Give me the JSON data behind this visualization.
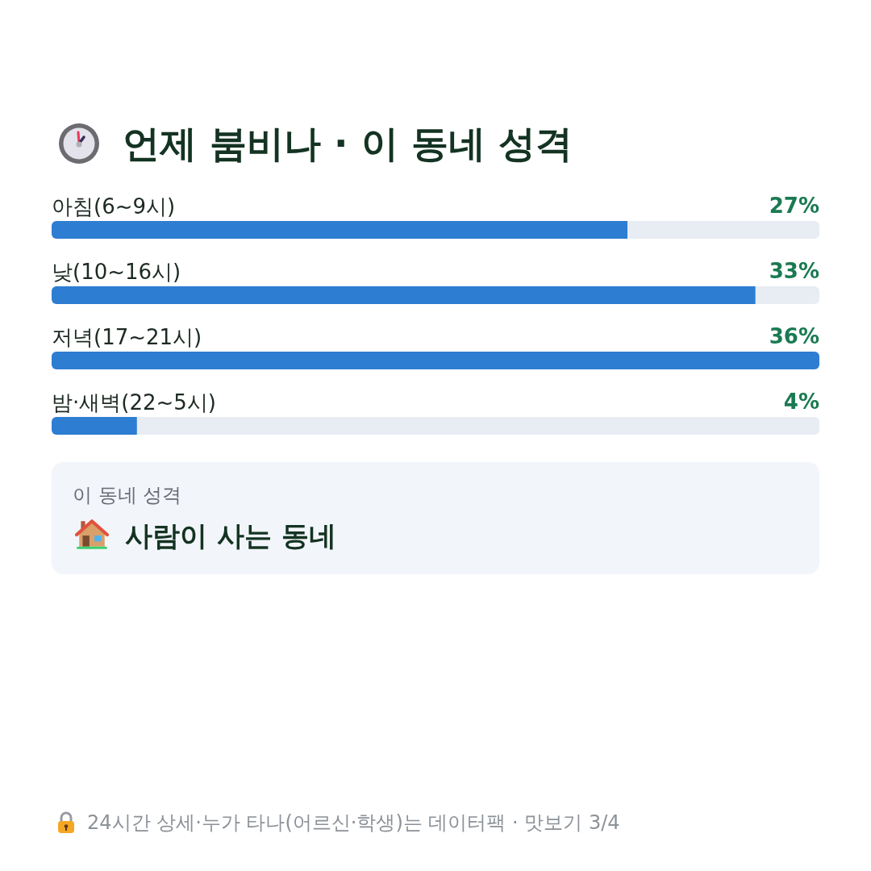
{
  "chart_data": {
    "type": "bar",
    "orientation": "horizontal",
    "title": "언제 붐비나 · 이 동네 성격",
    "categories": [
      "아침(6~9시)",
      "낮(10~16시)",
      "저녁(17~21시)",
      "밤·새벽(22~5시)"
    ],
    "values": [
      27,
      33,
      36,
      4
    ],
    "value_labels": [
      "27%",
      "33%",
      "36%",
      "4%"
    ],
    "color": "#2d7dd2",
    "annotations": [
      "이 동네 성격",
      "사람이 사는 동네",
      "24시간 상세·누가 타나(어르신·학생)는 데이터팩 · 맛보기 3/4"
    ]
  }
}
